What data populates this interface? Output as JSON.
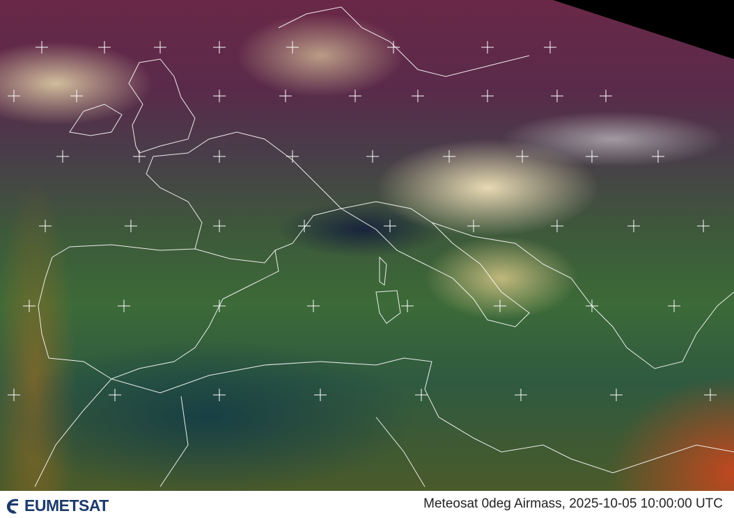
{
  "image": {
    "type": "satellite-composite",
    "colors": {
      "clouds": "#f0e1b9",
      "airmass_cold": "#6a2848",
      "airmass_warm": "#3c6a38",
      "dry_high": "#c8461e",
      "space": "#000000",
      "coastline": "#ffffff"
    }
  },
  "footer": {
    "logo_text": "EUMETSAT",
    "logo_color": "#1b3a6b",
    "caption": "Meteosat 0deg Airmass, 2025-10-05 10:00:00 UTC"
  }
}
